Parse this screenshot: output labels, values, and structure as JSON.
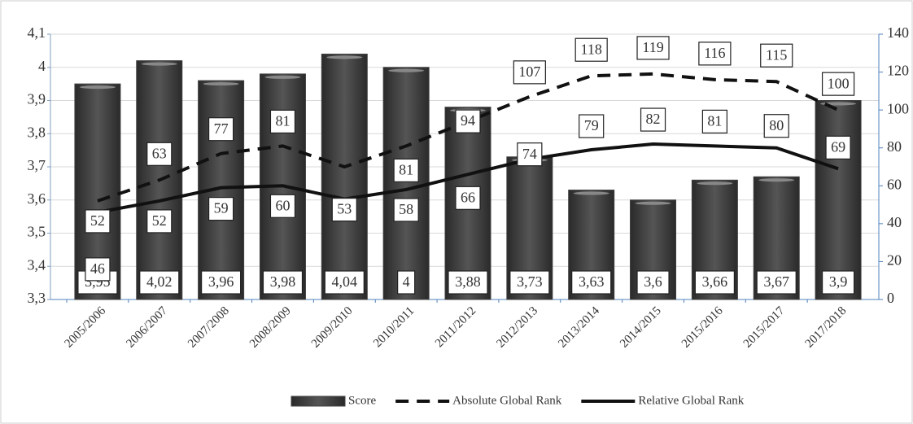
{
  "chart_data": {
    "type": "bar_line",
    "categories": [
      "2005/2006",
      "2006/2007",
      "2007/2008",
      "2008/2009",
      "2009/2010",
      "2010/2011",
      "2011/2012",
      "2012/2013",
      "2013/2014",
      "2014/2015",
      "2015/2016",
      "2015/2017",
      "2017/2018"
    ],
    "series": [
      {
        "name": "Score",
        "color": "#404040",
        "type": "bar",
        "values": [
          3.95,
          4.02,
          3.96,
          3.98,
          4.04,
          4,
          3.88,
          3.73,
          3.63,
          3.6,
          3.66,
          3.67,
          3.9
        ],
        "value_labels": [
          "3,95",
          "4,02",
          "3,96",
          "3,98",
          "4,04",
          "4",
          "3,88",
          "3,73",
          "3,63",
          "3,6",
          "3,66",
          "3,67",
          "3,9"
        ]
      },
      {
        "name": "Absolute Global Rank",
        "color": "#111111",
        "type": "line",
        "dash": true,
        "axis": "y2",
        "values": [
          52,
          63,
          77,
          81,
          70,
          81,
          94,
          107,
          118,
          119,
          116,
          115,
          100
        ]
      },
      {
        "name": "Relative Global Rank",
        "color": "#111111",
        "type": "line",
        "dash": false,
        "axis": "y2",
        "values": [
          46,
          52,
          59,
          60,
          53,
          58,
          66,
          74,
          79,
          82,
          81,
          80,
          69
        ]
      }
    ],
    "ylim": [
      3.3,
      4.1
    ],
    "yticks": [
      {
        "value": 3.3,
        "label": "3,3"
      },
      {
        "value": 3.4,
        "label": "3,4"
      },
      {
        "value": 3.5,
        "label": "3,5"
      },
      {
        "value": 3.6,
        "label": "3,6"
      },
      {
        "value": 3.7,
        "label": "3,7"
      },
      {
        "value": 3.8,
        "label": "3,8"
      },
      {
        "value": 3.9,
        "label": "3,9"
      },
      4,
      {
        "value": 4.1,
        "label": "4,1"
      }
    ],
    "y2lim": [
      0,
      140
    ],
    "y2ticks": [
      0,
      20,
      40,
      60,
      80,
      100,
      120,
      140
    ],
    "grid": true,
    "legend": "bottom"
  }
}
